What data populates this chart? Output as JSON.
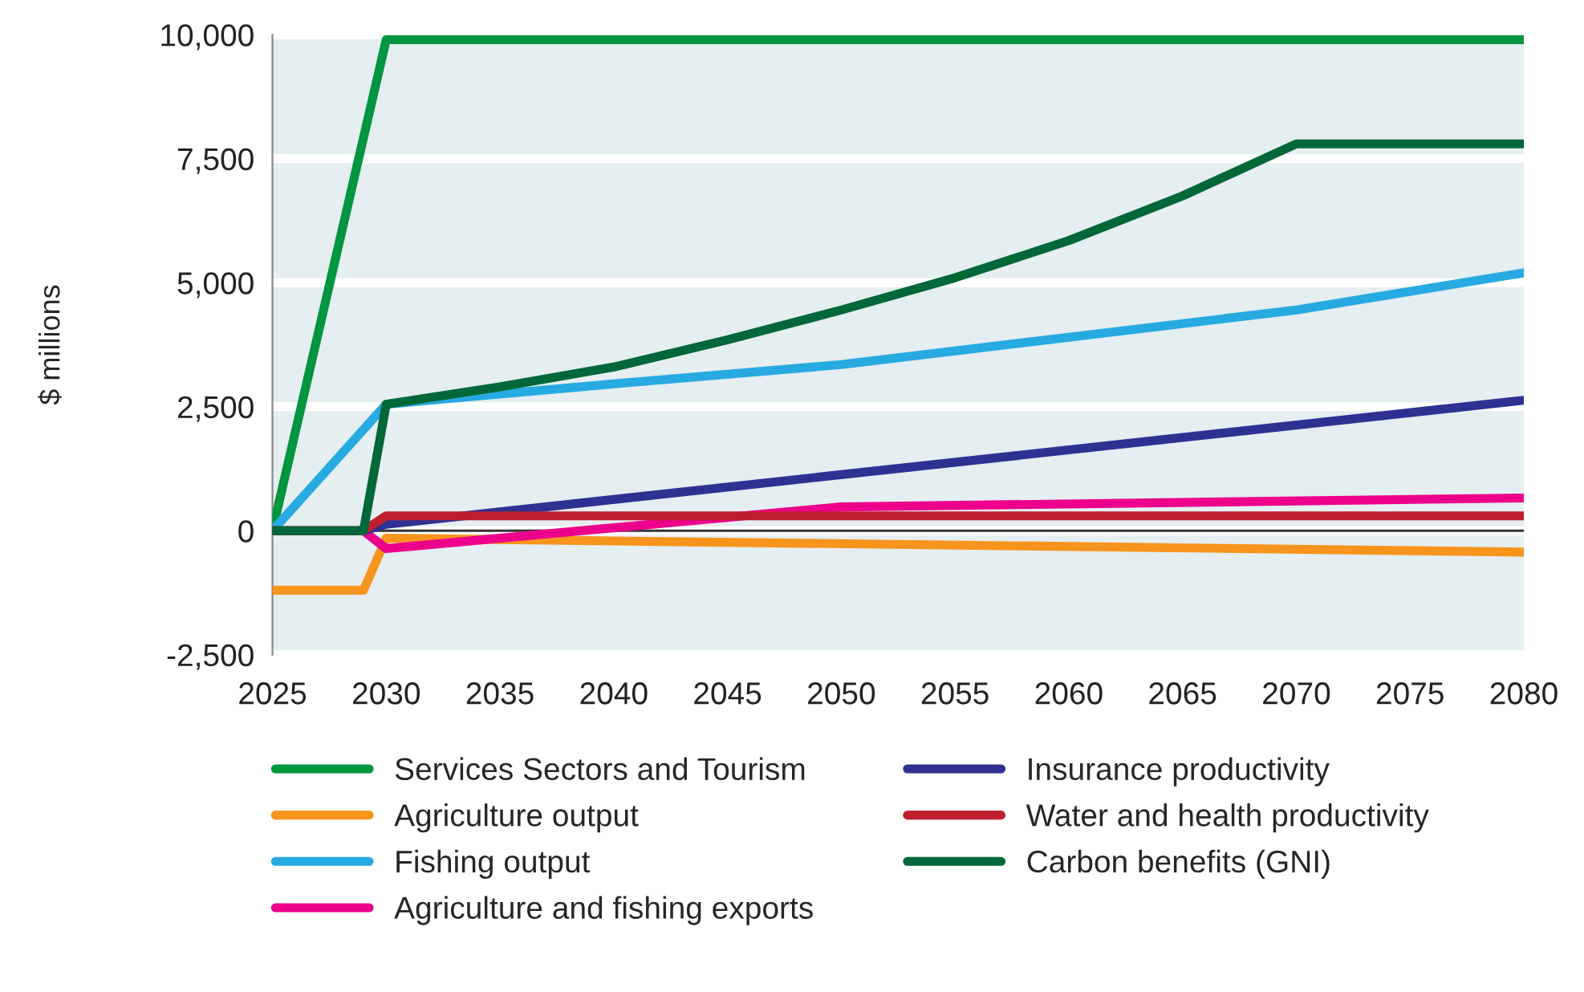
{
  "chart_data": {
    "type": "line",
    "ylabel": "$ millions",
    "xlim": [
      2025,
      2080
    ],
    "xticks": [
      2025,
      2030,
      2035,
      2040,
      2045,
      2050,
      2055,
      2060,
      2065,
      2070,
      2075,
      2080
    ],
    "ylim": [
      -2500,
      10000
    ],
    "yticks": [
      {
        "value": -2500,
        "label": "-2,500"
      },
      0,
      {
        "value": 2500,
        "label": "2,500"
      },
      {
        "value": 5000,
        "label": "5,000"
      },
      {
        "value": 7500,
        "label": "7,500"
      },
      {
        "value": 10000,
        "label": "10,000"
      }
    ],
    "grid": "y",
    "legend": "bottom",
    "marker": "none",
    "line_style": "solid",
    "ref_lines": [
      {
        "axis": "y",
        "value": 0,
        "color": "#333333"
      }
    ],
    "series": [
      {
        "name": "Services Sectors and Tourism",
        "color": "#00953f",
        "x": [
          2025,
          2030,
          2080
        ],
        "values": [
          0,
          9900,
          9900
        ]
      },
      {
        "name": "Agriculture output",
        "color": "#f7941d",
        "x": [
          2025,
          2029,
          2030,
          2080
        ],
        "values": [
          -1200,
          -1200,
          -150,
          -430
        ]
      },
      {
        "name": "Fishing output",
        "color": "#27aae1",
        "x": [
          2025,
          2030,
          2040,
          2050,
          2060,
          2070,
          2080
        ],
        "values": [
          0,
          2550,
          2960,
          3350,
          3900,
          4450,
          5200
        ]
      },
      {
        "name": "Agriculture and fishing exports",
        "color": "#ec008c",
        "x": [
          2025,
          2029,
          2030,
          2050,
          2080
        ],
        "values": [
          0,
          0,
          -360,
          480,
          660
        ]
      },
      {
        "name": "Insurance productivity",
        "color": "#2e3192",
        "x": [
          2025,
          2029,
          2030,
          2080
        ],
        "values": [
          0,
          0,
          130,
          2630
        ]
      },
      {
        "name": "Water and health productivity",
        "color": "#be1e2d",
        "x": [
          2025,
          2029,
          2030,
          2080
        ],
        "values": [
          0,
          0,
          300,
          300
        ]
      },
      {
        "name": "Carbon benefits (GNI)",
        "color": "#006838",
        "x": [
          2025,
          2029,
          2030,
          2035,
          2040,
          2045,
          2050,
          2055,
          2060,
          2065,
          2070,
          2080
        ],
        "values": [
          0,
          0,
          2550,
          2900,
          3300,
          3850,
          4450,
          5100,
          5850,
          6750,
          7800,
          7800
        ]
      }
    ]
  }
}
